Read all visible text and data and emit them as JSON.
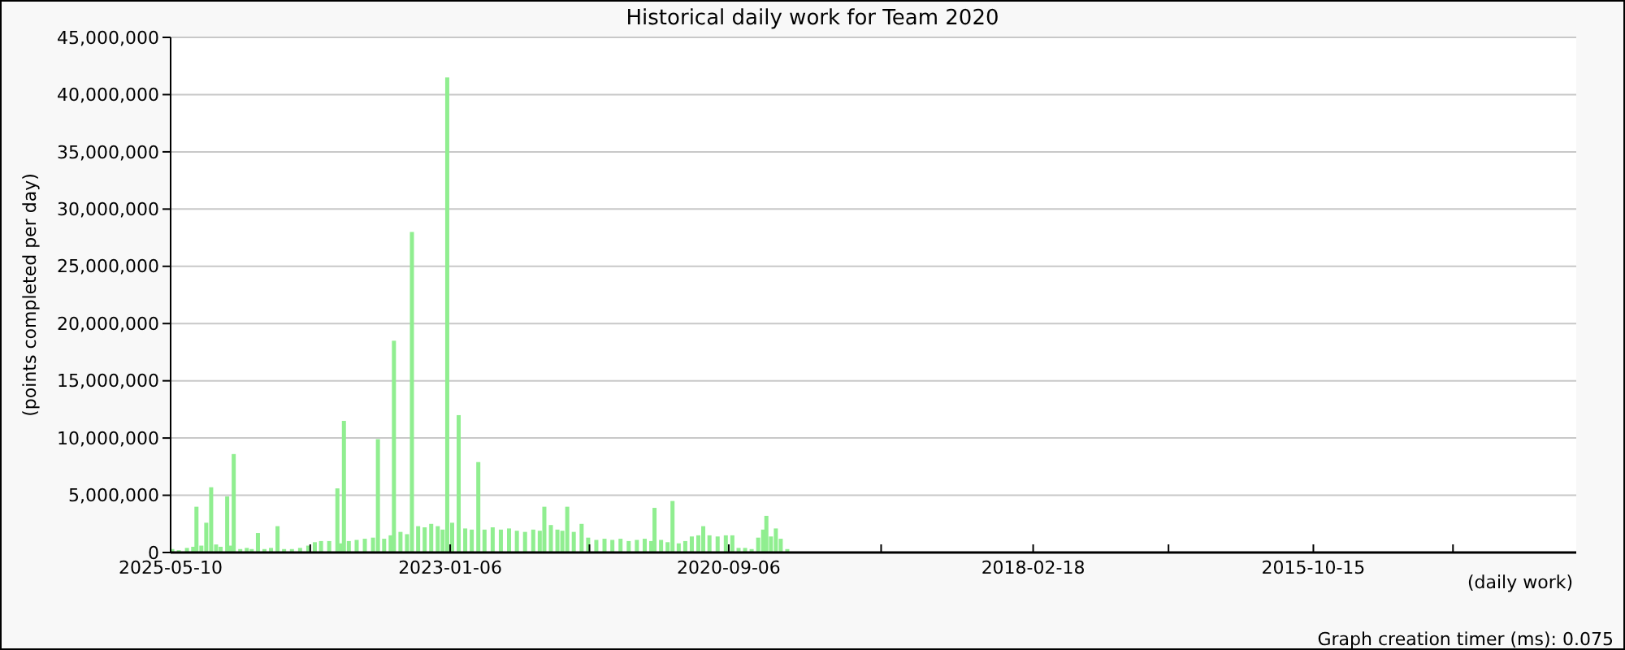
{
  "chart_data": {
    "type": "bar",
    "title": "Historical daily work for Team 2020",
    "ylabel": "(points completed per day)",
    "xlabel": "(daily work)",
    "annotations": [
      "Graph creation timer (ms): 0.075"
    ],
    "x": [
      "2025-05-05",
      "2025-04-15",
      "2025-03-21",
      "2025-03-02",
      "2025-02-20",
      "2025-02-05",
      "2025-01-21",
      "2025-01-06",
      "2024-12-22",
      "2024-12-08",
      "2024-11-18",
      "2024-11-08",
      "2024-10-29",
      "2024-10-09",
      "2024-09-19",
      "2024-09-04",
      "2024-08-16",
      "2024-07-27",
      "2024-07-07",
      "2024-06-17",
      "2024-05-28",
      "2024-05-04",
      "2024-04-09",
      "2024-03-15",
      "2024-02-24",
      "2024-02-05",
      "2024-01-11",
      "2023-12-17",
      "2023-12-07",
      "2023-11-27",
      "2023-11-12",
      "2023-10-19",
      "2023-09-24",
      "2023-08-30",
      "2023-08-15",
      "2023-07-27",
      "2023-07-07",
      "2023-06-27",
      "2023-06-07",
      "2023-05-18",
      "2023-05-03",
      "2023-04-14",
      "2023-03-25",
      "2023-03-05",
      "2023-02-13",
      "2023-01-29",
      "2023-01-15",
      "2022-12-31",
      "2022-12-11",
      "2022-11-21",
      "2022-11-01",
      "2022-10-12",
      "2022-09-23",
      "2022-08-29",
      "2022-08-04",
      "2022-07-10",
      "2022-06-16",
      "2022-05-22",
      "2022-04-27",
      "2022-04-07",
      "2022-03-24",
      "2022-03-04",
      "2022-02-12",
      "2022-01-28",
      "2022-01-13",
      "2021-12-24",
      "2021-11-30",
      "2021-11-10",
      "2021-10-16",
      "2021-09-21",
      "2021-08-28",
      "2021-08-03",
      "2021-07-09",
      "2021-06-14",
      "2021-05-21",
      "2021-05-01",
      "2021-04-21",
      "2021-04-01",
      "2021-03-12",
      "2021-02-25",
      "2021-02-06",
      "2021-01-17",
      "2020-12-28",
      "2020-12-08",
      "2020-11-23",
      "2020-11-04",
      "2020-10-10",
      "2020-09-15",
      "2020-08-26",
      "2020-08-07",
      "2020-07-18",
      "2020-06-28",
      "2020-06-08",
      "2020-05-24",
      "2020-05-14",
      "2020-04-30",
      "2020-04-15",
      "2020-03-31",
      "2020-03-11"
    ],
    "series": [
      {
        "color": "#90ee90",
        "values": [
          300000,
          200000,
          400000,
          500000,
          4000000,
          600000,
          2600000,
          5700000,
          700000,
          500000,
          4900000,
          600000,
          8600000,
          300000,
          400000,
          300000,
          1700000,
          300000,
          400000,
          2300000,
          300000,
          300000,
          400000,
          600000,
          900000,
          1000000,
          1000000,
          5600000,
          800000,
          11500000,
          1000000,
          1100000,
          1200000,
          1300000,
          9900000,
          1200000,
          1500000,
          18500000,
          1800000,
          1600000,
          28000000,
          2300000,
          2200000,
          2500000,
          2300000,
          2000000,
          41500000,
          2600000,
          12000000,
          2100000,
          2000000,
          7900000,
          2000000,
          2200000,
          2000000,
          2100000,
          1900000,
          1800000,
          2000000,
          1900000,
          4000000,
          2400000,
          2000000,
          1900000,
          4000000,
          1800000,
          2500000,
          1300000,
          1100000,
          1200000,
          1100000,
          1200000,
          1000000,
          1100000,
          1200000,
          1000000,
          3900000,
          1100000,
          900000,
          4500000,
          800000,
          1000000,
          1400000,
          1500000,
          2300000,
          1500000,
          1400000,
          1500000,
          1500000,
          400000,
          400000,
          300000,
          1300000,
          2000000,
          3200000,
          1400000,
          2100000,
          1200000,
          300000
        ]
      }
    ],
    "xlim": [
      "2025-05-10",
      "2013-08-02"
    ],
    "xticks": [
      {
        "value": "2025-05-10",
        "label": "2025-05-10"
      },
      {
        "value": "2024-03-09",
        "label": null
      },
      {
        "value": "2023-01-06",
        "label": "2023-01-06"
      },
      {
        "value": "2021-11-06",
        "label": null
      },
      {
        "value": "2020-09-06",
        "label": "2020-09-06"
      },
      {
        "value": "2019-05-29",
        "label": null
      },
      {
        "value": "2018-02-18",
        "label": "2018-02-18"
      },
      {
        "value": "2016-12-31",
        "label": null
      },
      {
        "value": "2015-10-15",
        "label": "2015-10-15"
      },
      {
        "value": "2014-08-14",
        "label": null
      }
    ],
    "ylim": [
      0,
      45000000
    ],
    "yticks": [
      0,
      {
        "value": 5000000,
        "label": "5,000,000"
      },
      {
        "value": 10000000,
        "label": "10,000,000"
      },
      {
        "value": 15000000,
        "label": "15,000,000"
      },
      {
        "value": 20000000,
        "label": "20,000,000"
      },
      {
        "value": 25000000,
        "label": "25,000,000"
      },
      {
        "value": 30000000,
        "label": "30,000,000"
      },
      {
        "value": 35000000,
        "label": "35,000,000"
      },
      {
        "value": 40000000,
        "label": "40,000,000"
      },
      {
        "value": 45000000,
        "label": "45,000,000"
      }
    ],
    "grid": "y"
  }
}
